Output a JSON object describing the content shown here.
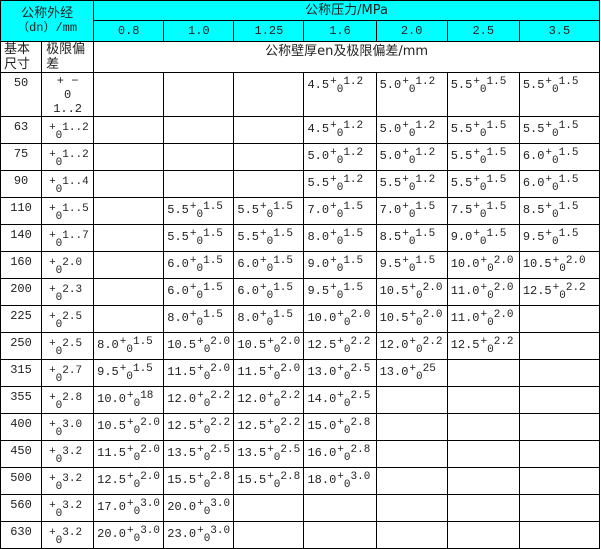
{
  "header": {
    "outer_diameter_label": "公称外经",
    "outer_diameter_unit": "（dn）/mm",
    "pressure_label": "公称压力/MPa",
    "pressures": [
      "0.8",
      "1.0",
      "1.25",
      "1.6",
      "2.0",
      "2.5",
      "3.5"
    ],
    "basic_size_label": "基本尺寸",
    "tolerance_label": "极限偏差",
    "wall_label": "公称壁厚en及极限偏差/mm"
  },
  "special_row_50": {
    "sign": "+",
    "dash": "−",
    "zero": "0",
    "value": "1..2"
  },
  "rows": [
    {
      "size": "50",
      "tol": "1..2",
      "cells": [
        null,
        null,
        null,
        [
          "4.5",
          "1.2"
        ],
        [
          "5.0",
          "1.2"
        ],
        [
          "5.5",
          "1.5"
        ],
        [
          "5.5",
          "1.5"
        ]
      ]
    },
    {
      "size": "63",
      "tol": "1..2",
      "cells": [
        null,
        null,
        null,
        [
          "4.5",
          "1.2"
        ],
        [
          "5.0",
          "1.2"
        ],
        [
          "5.5",
          "1.5"
        ],
        [
          "5.5",
          "1.5"
        ]
      ]
    },
    {
      "size": "75",
      "tol": "1..2",
      "cells": [
        null,
        null,
        null,
        [
          "5.0",
          "1.2"
        ],
        [
          "5.0",
          "1.2"
        ],
        [
          "5.5",
          "1.5"
        ],
        [
          "6.0",
          "1.5"
        ]
      ]
    },
    {
      "size": "90",
      "tol": "1..4",
      "cells": [
        null,
        null,
        null,
        [
          "5.5",
          "1.2"
        ],
        [
          "5.5",
          "1.2"
        ],
        [
          "5.5",
          "1.5"
        ],
        [
          "6.0",
          "1.5"
        ]
      ]
    },
    {
      "size": "110",
      "tol": "1..5",
      "cells": [
        null,
        [
          "5.5",
          "1.5"
        ],
        [
          "5.5",
          "1.5"
        ],
        [
          "7.0",
          "1.5"
        ],
        [
          "7.0",
          "1.5"
        ],
        [
          "7.5",
          "1.5"
        ],
        [
          "8.5",
          "1.5"
        ]
      ]
    },
    {
      "size": "140",
      "tol": "1..7",
      "cells": [
        null,
        [
          "5.5",
          "1.5"
        ],
        [
          "5.5",
          "1.5"
        ],
        [
          "8.0",
          "1.5"
        ],
        [
          "8.5",
          "1.5"
        ],
        [
          "9.0",
          "1.5"
        ],
        [
          "9.5",
          "1.5"
        ]
      ]
    },
    {
      "size": "160",
      "tol": "2.0",
      "cells": [
        null,
        [
          "6.0",
          "1.5"
        ],
        [
          "6.0",
          "1.5"
        ],
        [
          "9.0",
          "1.5"
        ],
        [
          "9.5",
          "1.5"
        ],
        [
          "10.0",
          "2.0"
        ],
        [
          "10.5",
          "2.0"
        ]
      ]
    },
    {
      "size": "200",
      "tol": "2.3",
      "cells": [
        null,
        [
          "6.0",
          "1.5"
        ],
        [
          "6.0",
          "1.5"
        ],
        [
          "9.5",
          "1.5"
        ],
        [
          "10.5",
          "2.0"
        ],
        [
          "11.0",
          "2.0"
        ],
        [
          "12.5",
          "2.2"
        ]
      ]
    },
    {
      "size": "225",
      "tol": "2.5",
      "cells": [
        null,
        [
          "8.0",
          "1.5"
        ],
        [
          "8.0",
          "1.5"
        ],
        [
          "10.0",
          "2.0"
        ],
        [
          "10.5",
          "2.0"
        ],
        [
          "11.0",
          "2.0"
        ],
        null
      ]
    },
    {
      "size": "250",
      "tol": "2.5",
      "cells": [
        [
          "8.0",
          "1.5"
        ],
        [
          "10.5",
          "2.0"
        ],
        [
          "10.5",
          "2.0"
        ],
        [
          "12.5",
          "2.2"
        ],
        [
          "12.0",
          "2.2"
        ],
        [
          "12.5",
          "2.2"
        ],
        null
      ]
    },
    {
      "size": "315",
      "tol": "2.7",
      "cells": [
        [
          "9.5",
          "1.5"
        ],
        [
          "11.5",
          "2.0"
        ],
        [
          "11.5",
          "2.0"
        ],
        [
          "13.0",
          "2.5"
        ],
        [
          "13.0",
          "25"
        ],
        null,
        null
      ]
    },
    {
      "size": "355",
      "tol": "2.8",
      "cells": [
        [
          "10.0",
          "18"
        ],
        [
          "12.0",
          "2.2"
        ],
        [
          "12.0",
          "2.2"
        ],
        [
          "14.0",
          "2.5"
        ],
        null,
        null,
        null
      ]
    },
    {
      "size": "400",
      "tol": "3.0",
      "cells": [
        [
          "10.5",
          "2.0"
        ],
        [
          "12.5",
          "2.2"
        ],
        [
          "12.5",
          "2.2"
        ],
        [
          "15.0",
          "2.8"
        ],
        null,
        null,
        null
      ]
    },
    {
      "size": "450",
      "tol": "3.2",
      "cells": [
        [
          "11.5",
          "2.0"
        ],
        [
          "13.5",
          "2.5"
        ],
        [
          "13.5",
          "2.5"
        ],
        [
          "16.0",
          "2.8"
        ],
        null,
        null,
        null
      ]
    },
    {
      "size": "500",
      "tol": "3.2",
      "cells": [
        [
          "12.5",
          "2.0"
        ],
        [
          "15.5",
          "2.8"
        ],
        [
          "15.5",
          "2.8"
        ],
        [
          "18.0",
          "3.0"
        ],
        null,
        null,
        null
      ]
    },
    {
      "size": "560",
      "tol": "3.2",
      "cells": [
        [
          "17.0",
          "3.0"
        ],
        [
          "20.0",
          "3.0"
        ],
        null,
        null,
        null,
        null,
        null
      ]
    },
    {
      "size": "630",
      "tol": "3.2",
      "cells": [
        [
          "20.0",
          "3.0"
        ],
        [
          "23.0",
          "3.0"
        ],
        null,
        null,
        null,
        null,
        null
      ]
    }
  ],
  "symbols": {
    "plus": "+",
    "zero": "0"
  },
  "colors": {
    "header_bg": "#00ffff",
    "border": "#000000"
  }
}
